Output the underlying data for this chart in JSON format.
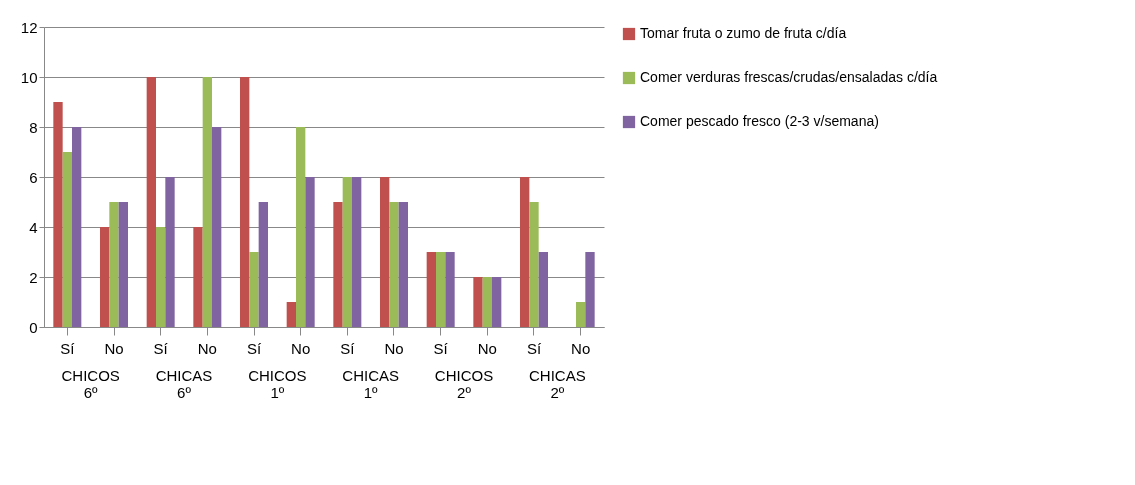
{
  "chart_data": {
    "type": "bar",
    "categories": [
      "Sí",
      "No",
      "Sí",
      "No",
      "Sí",
      "No",
      "Sí",
      "No",
      "Sí",
      "No",
      "Sí",
      "No"
    ],
    "annotations": [
      "CHICOS 6º",
      "CHICAS 6º",
      "CHICOS 1º",
      "CHICAS 1º",
      "CHICOS 2º",
      "CHICAS 2º"
    ],
    "series": [
      {
        "name": "Tomar fruta o zumo de fruta c/día",
        "color": "#c0504d",
        "values": [
          9,
          4,
          10,
          4,
          10,
          1,
          5,
          6,
          3,
          2,
          6,
          0
        ]
      },
      {
        "name": "Comer verduras frescas/crudas/ensaladas c/día",
        "color": "#9bbb59",
        "values": [
          7,
          5,
          4,
          10,
          3,
          8,
          6,
          5,
          3,
          2,
          5,
          1
        ]
      },
      {
        "name": "Comer pescado fresco (2-3 v/semana)",
        "color": "#8064a2",
        "values": [
          8,
          5,
          6,
          8,
          5,
          6,
          6,
          5,
          3,
          2,
          3,
          3
        ]
      }
    ],
    "ylim": [
      0,
      12
    ],
    "yticks": [
      0,
      2,
      4,
      6,
      8,
      10,
      12
    ],
    "grid": "y",
    "legend": "right"
  }
}
